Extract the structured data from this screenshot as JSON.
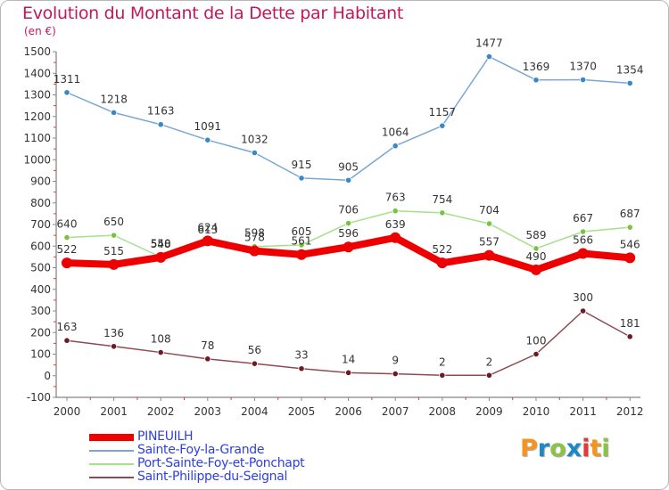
{
  "title": "Evolution du Montant de la Dette par Habitant",
  "unit_label": "(en €)",
  "logo": {
    "text": "Proxiti",
    "letters": [
      "P",
      "r",
      "o",
      "x",
      "i",
      "t",
      "i"
    ],
    "colors": [
      "#f7941d",
      "#1e88c7",
      "#8bc34a",
      "#1e88c7",
      "#e53935",
      "#f7941d",
      "#8bc34a"
    ]
  },
  "chart_data": {
    "type": "line",
    "x": [
      2000,
      2001,
      2002,
      2003,
      2004,
      2005,
      2006,
      2007,
      2008,
      2009,
      2010,
      2011,
      2012
    ],
    "ylim": [
      -100,
      1500
    ],
    "yticks": [
      -100,
      0,
      100,
      200,
      300,
      400,
      500,
      600,
      700,
      800,
      900,
      1000,
      1100,
      1200,
      1300,
      1400,
      1500
    ],
    "grid": false,
    "legend_position": "bottom-left",
    "series": [
      {
        "name": "Sainte-Foy-la-Grande",
        "color": "#7aa7d6",
        "marker": "#3a87c8",
        "width": 1.5,
        "values": [
          1311,
          1218,
          1163,
          1091,
          1032,
          915,
          905,
          1064,
          1157,
          1477,
          1369,
          1370,
          1354
        ],
        "labels": [
          "1311",
          "1218",
          "1163",
          "1091",
          "1032",
          "915",
          "905",
          "1064",
          "1157",
          "1477",
          "1369",
          "1370",
          "1354"
        ]
      },
      {
        "name": "Port-Sainte-Foy-et-Ponchapt",
        "color": "#a5e08a",
        "marker": "#7cc242",
        "width": 1.5,
        "values": [
          640,
          650,
          550,
          613,
          598,
          605,
          706,
          763,
          754,
          704,
          589,
          667,
          687
        ],
        "labels": [
          "640",
          "650",
          "550",
          "613",
          "598",
          "605",
          "706",
          "763",
          "754",
          "704",
          "589",
          "667",
          "687"
        ]
      },
      {
        "name": "Saint-Philippe-du-Seignal",
        "color": "#8d4a50",
        "marker": "#6d1a24",
        "width": 1.5,
        "values": [
          163,
          136,
          108,
          78,
          56,
          33,
          14,
          9,
          2,
          2,
          100,
          300,
          181
        ],
        "labels": [
          "163",
          "136",
          "108",
          "78",
          "56",
          "33",
          "14",
          "9",
          "2",
          "2",
          "100",
          "300",
          "181"
        ]
      },
      {
        "name": "PINEUILH",
        "color": "#ee0000",
        "marker": "#ee0000",
        "width": 8,
        "values": [
          522,
          515,
          548,
          624,
          578,
          561,
          596,
          639,
          522,
          557,
          490,
          566,
          546
        ],
        "labels": [
          "522",
          "515",
          "548",
          "624",
          "578",
          "561",
          "596",
          "639",
          "522",
          "557",
          "490",
          "566",
          "546"
        ]
      }
    ],
    "legend_order": [
      "PINEUILH",
      "Sainte-Foy-la-Grande",
      "Port-Sainte-Foy-et-Ponchapt",
      "Saint-Philippe-du-Seignal"
    ]
  }
}
